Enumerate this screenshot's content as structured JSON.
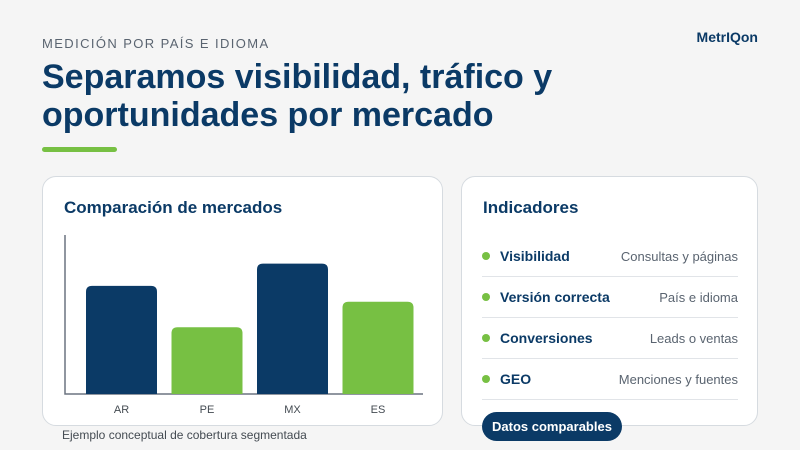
{
  "header": {
    "eyebrow": "MEDICIÓN POR PAÍS E IDIOMA",
    "brand": "MetrIQon",
    "title_line1": "Separamos visibilidad, tráfico y",
    "title_line2": "oportunidades por mercado"
  },
  "chart_card": {
    "title": "Comparación de mercados",
    "caption": "Ejemplo conceptual de cobertura segmentada"
  },
  "chart_data": {
    "type": "bar",
    "categories": [
      "AR",
      "PE",
      "MX",
      "ES"
    ],
    "values": [
      68,
      42,
      82,
      58
    ],
    "colors": [
      "#0b3a66",
      "#77c043",
      "#0b3a66",
      "#77c043"
    ],
    "ylim": [
      0,
      100
    ],
    "title": "Comparación de mercados",
    "xlabel": "",
    "ylabel": "",
    "grid": false
  },
  "indicators_card": {
    "title": "Indicadores",
    "items": [
      {
        "name": "Visibilidad",
        "desc": "Consultas y páginas"
      },
      {
        "name": "Versión correcta",
        "desc": "País e idioma"
      },
      {
        "name": "Conversiones",
        "desc": "Leads o ventas"
      },
      {
        "name": "GEO",
        "desc": "Menciones y fuentes"
      }
    ],
    "badge": "Datos comparables"
  },
  "colors": {
    "navy": "#0b3a66",
    "green": "#77c043",
    "background": "#f5f5f5"
  }
}
